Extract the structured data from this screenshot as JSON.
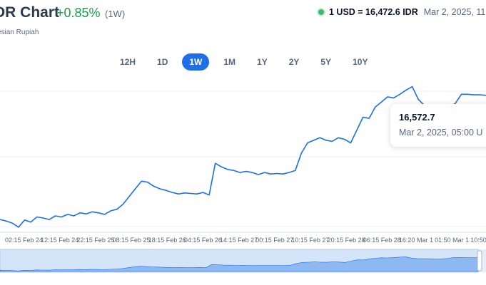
{
  "header": {
    "title": "DR Chart",
    "change": "+0.85%",
    "period": "(1W)",
    "subtitle": "esian Rupiah"
  },
  "rate": {
    "value": "1 USD = 16,472.6 IDR",
    "date": "Mar 2, 2025, 11:"
  },
  "tabs": [
    {
      "label": "12H",
      "active": false
    },
    {
      "label": "1D",
      "active": false
    },
    {
      "label": "1W",
      "active": true
    },
    {
      "label": "1M",
      "active": false
    },
    {
      "label": "1Y",
      "active": false
    },
    {
      "label": "2Y",
      "active": false
    },
    {
      "label": "5Y",
      "active": false
    },
    {
      "label": "10Y",
      "active": false
    }
  ],
  "tooltip": {
    "value": "16,572.7",
    "date": "Mar 2, 2025, 05:00 U"
  },
  "colors": {
    "line": "#1e6fe8",
    "positive": "#1b9e4b",
    "navigator_fill": "#8db8f0"
  },
  "chart_data": {
    "type": "line",
    "x_tick_labels": [
      "02:15 Feb 24",
      "12:15 Feb 24",
      "22:15 Feb 25",
      "08:15 Feb 25",
      "18:15 Feb 26",
      "04:15 Feb 26",
      "14:15 Feb 27",
      "00:15 Feb 27",
      "10:15 Feb 27",
      "20:15 Feb 28",
      "06:15 Feb 28",
      "16:20 Mar 1",
      "01:50 Mar 1",
      "10:50"
    ],
    "ylim": [
      16320,
      16610
    ],
    "grid": true,
    "series": [
      {
        "values": [
          16345,
          16342,
          16338,
          16330,
          16344,
          16340,
          16350,
          16348,
          16345,
          16352,
          16350,
          16355,
          16352,
          16358,
          16356,
          16360,
          16358,
          16355,
          16362,
          16365,
          16375,
          16390,
          16405,
          16420,
          16418,
          16410,
          16405,
          16402,
          16398,
          16395,
          16397,
          16396,
          16395,
          16398,
          16393,
          16455,
          16448,
          16443,
          16441,
          16437,
          16439,
          16437,
          16433,
          16437,
          16434,
          16435,
          16434,
          16437,
          16441,
          16475,
          16495,
          16500,
          16505,
          16500,
          16498,
          16505,
          16502,
          16495,
          16520,
          16545,
          16543,
          16565,
          16575,
          16585,
          16583,
          16590,
          16598,
          16605,
          16580,
          16568,
          16568,
          16566,
          16562,
          16565,
          16572,
          16590,
          16590,
          16589,
          16589,
          16588
        ]
      }
    ]
  }
}
